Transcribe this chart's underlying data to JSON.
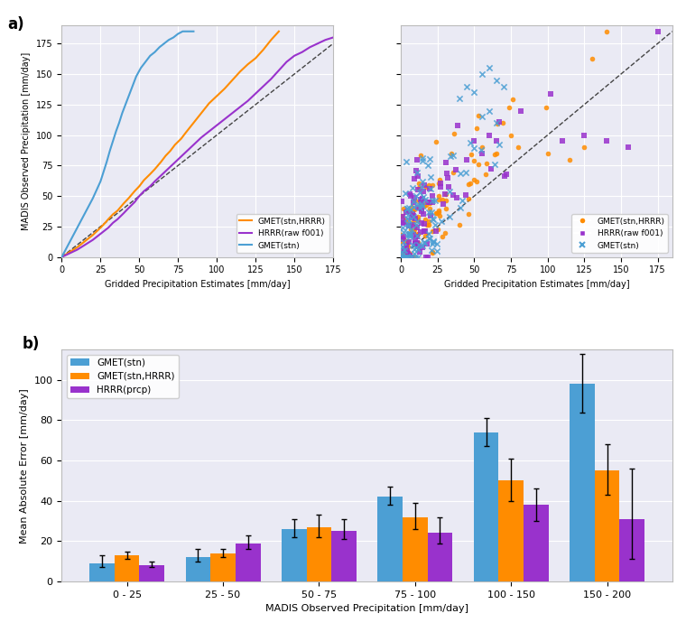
{
  "title_a": "a)",
  "title_b": "b)",
  "qq_xlabel": "Gridded Precipitation Estimates [mm/day]",
  "qq_ylabel": "MADIS Observed Precipitation [mm/day]",
  "scatter_xlabel": "Gridded Precipitation Estimates [mm/day]",
  "bar_xlabel": "MADIS Observed Precipitation [mm/day]",
  "bar_ylabel": "Mean Absolute Error [mm/day]",
  "qq_xlim": [
    0,
    175
  ],
  "qq_ylim": [
    0,
    190
  ],
  "scatter_xlim": [
    0,
    185
  ],
  "scatter_ylim": [
    0,
    190
  ],
  "bg_color": "#eaeaf4",
  "grid_color": "white",
  "colors": {
    "gmet_stn_hrrr": "#FF8C00",
    "hrrr_raw": "#9932CC",
    "gmet_stn": "#4C9FD4"
  },
  "bar_categories": [
    "0 - 25",
    "25 - 50",
    "50 - 75",
    "75 - 100",
    "100 - 150",
    "150 - 200"
  ],
  "bar_gmet_stn": [
    9,
    12,
    26,
    42,
    74,
    98
  ],
  "bar_gmet_stn_err_lo": [
    2,
    2,
    4,
    4,
    7,
    14
  ],
  "bar_gmet_stn_err_hi": [
    4,
    4,
    5,
    5,
    7,
    15
  ],
  "bar_gmet_stn_hrrr": [
    13,
    14,
    27,
    32,
    50,
    55
  ],
  "bar_gmet_stn_hrrr_err_lo": [
    2,
    2,
    5,
    6,
    10,
    12
  ],
  "bar_gmet_stn_hrrr_err_hi": [
    2,
    2,
    6,
    7,
    11,
    13
  ],
  "bar_hrrr_prcp": [
    8,
    19,
    25,
    24,
    38,
    31
  ],
  "bar_hrrr_prcp_err_lo": [
    1,
    3,
    4,
    5,
    8,
    20
  ],
  "bar_hrrr_prcp_err_hi": [
    2,
    4,
    6,
    8,
    8,
    25
  ]
}
